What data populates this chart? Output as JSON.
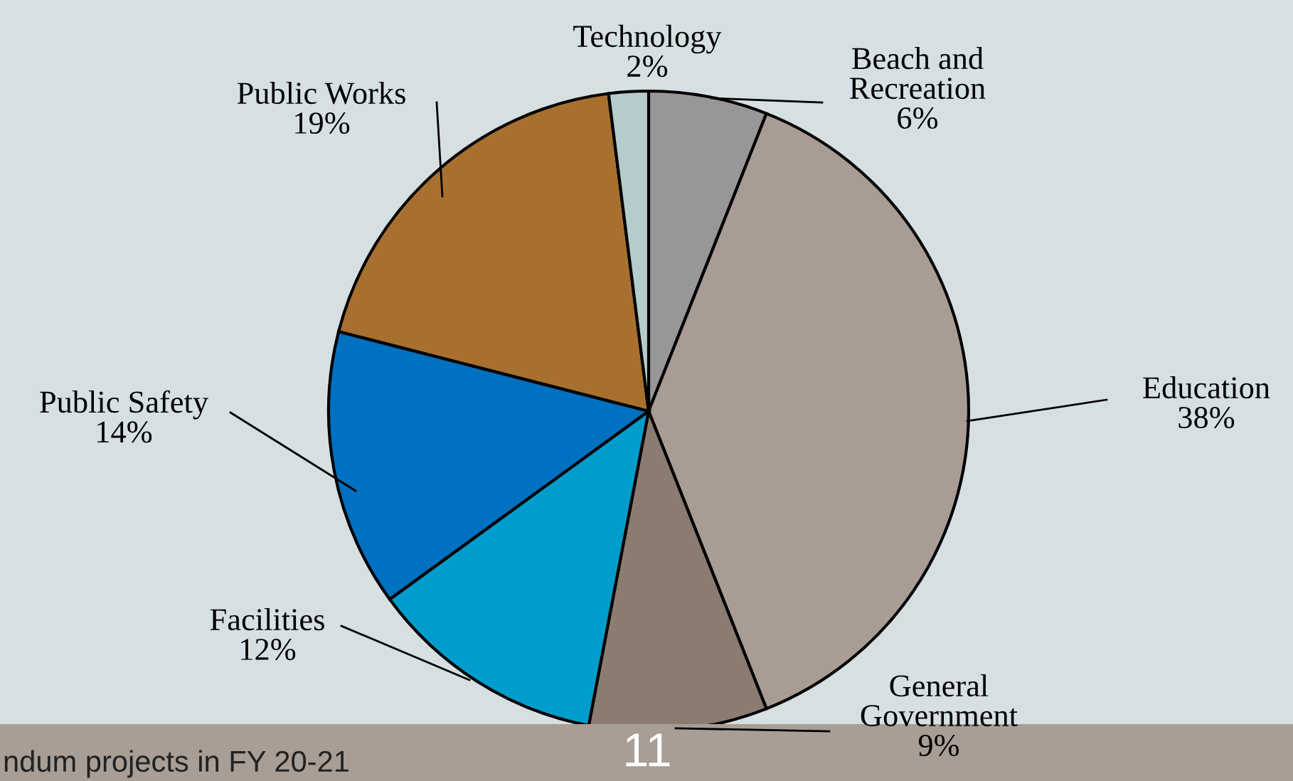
{
  "chart_data": {
    "type": "pie",
    "categories": [
      "Beach and\nRecreation",
      "Education",
      "General\nGovernment",
      "Facilities",
      "Public Safety",
      "Public Works",
      "Technology"
    ],
    "values": [
      6,
      38,
      9,
      12,
      14,
      19,
      2
    ],
    "value_labels": [
      "6%",
      "38%",
      "9%",
      "12%",
      "14%",
      "19%",
      "2%"
    ],
    "colors": [
      "#979797",
      "#a89c94",
      "#8b7b70",
      "#009dcc",
      "#0070c0",
      "#a8702e",
      "#b5cbcc"
    ],
    "annotations": [
      "ndum projects in FY 20-21",
      "11"
    ]
  }
}
